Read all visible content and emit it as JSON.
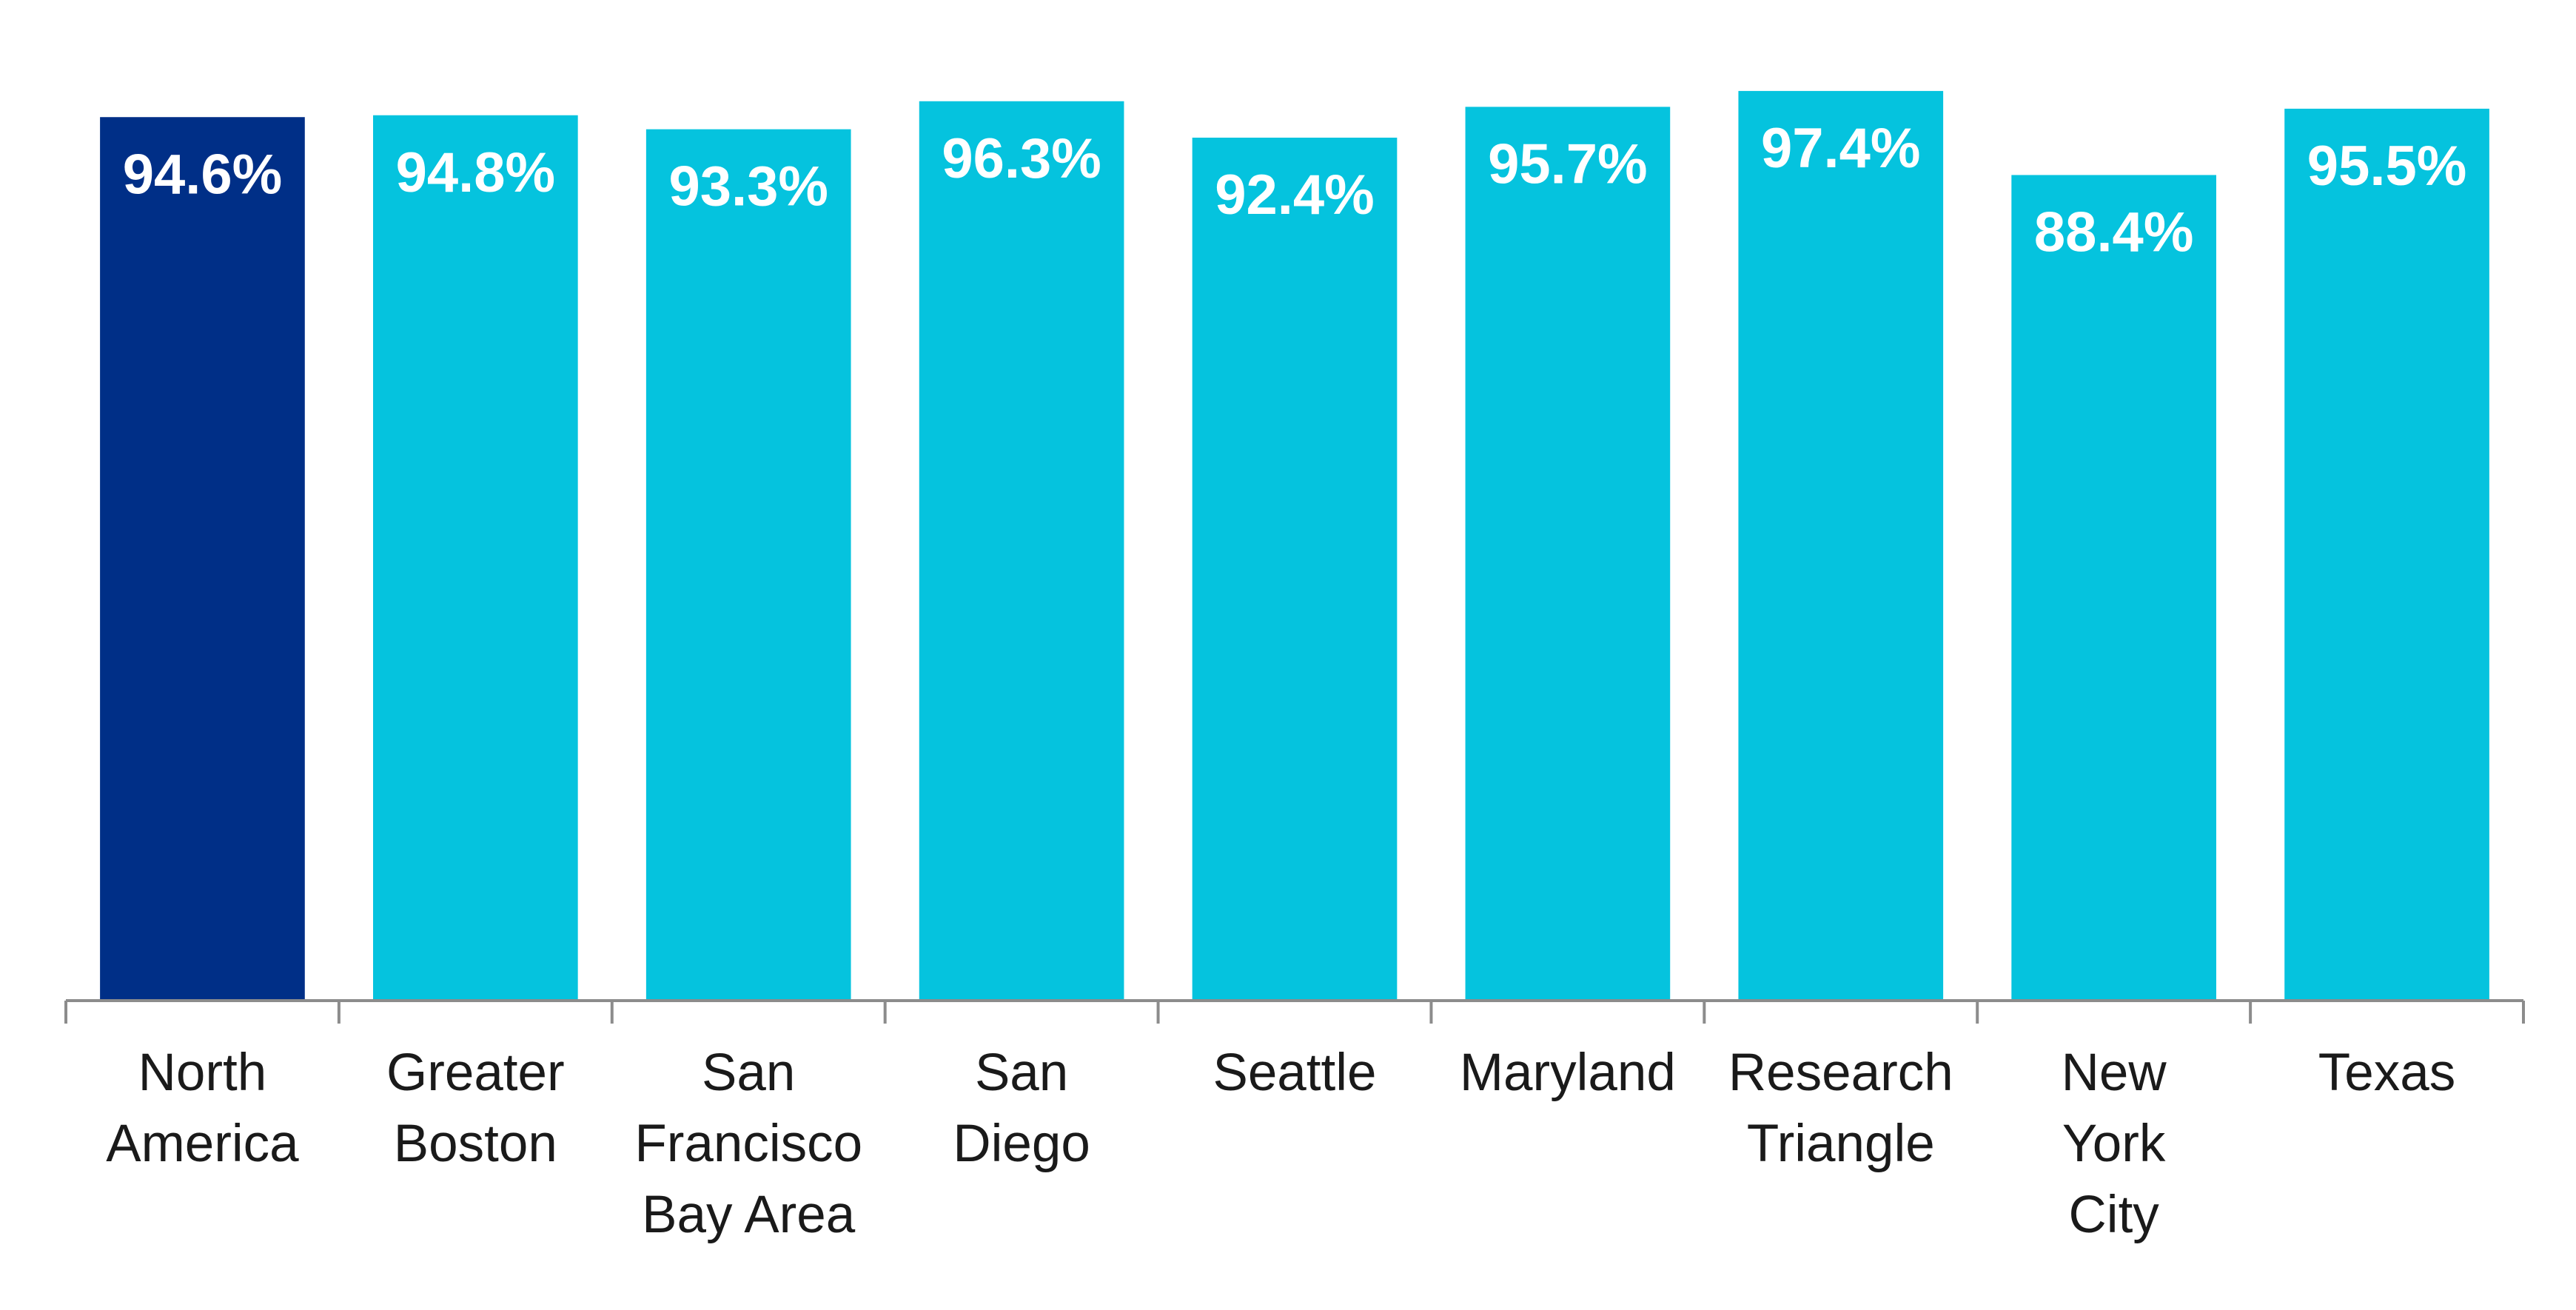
{
  "chart_data": {
    "type": "bar",
    "categories": [
      "North\nAmerica",
      "Greater\nBoston",
      "San\nFrancisco\nBay Area",
      "San\nDiego",
      "Seattle",
      "Maryland",
      "Research\nTriangle",
      "New\nYork\nCity",
      "Texas"
    ],
    "values": [
      94.6,
      94.8,
      93.3,
      96.3,
      92.4,
      95.7,
      97.4,
      88.4,
      95.5
    ],
    "value_labels": [
      "94.6%",
      "94.8%",
      "93.3%",
      "96.3%",
      "92.4%",
      "95.7%",
      "97.4%",
      "88.4%",
      "95.5%"
    ],
    "colors": [
      "#002f87",
      "#05c3de",
      "#05c3de",
      "#05c3de",
      "#05c3de",
      "#05c3de",
      "#05c3de",
      "#05c3de",
      "#05c3de"
    ],
    "ylim": [
      0,
      105
    ]
  }
}
